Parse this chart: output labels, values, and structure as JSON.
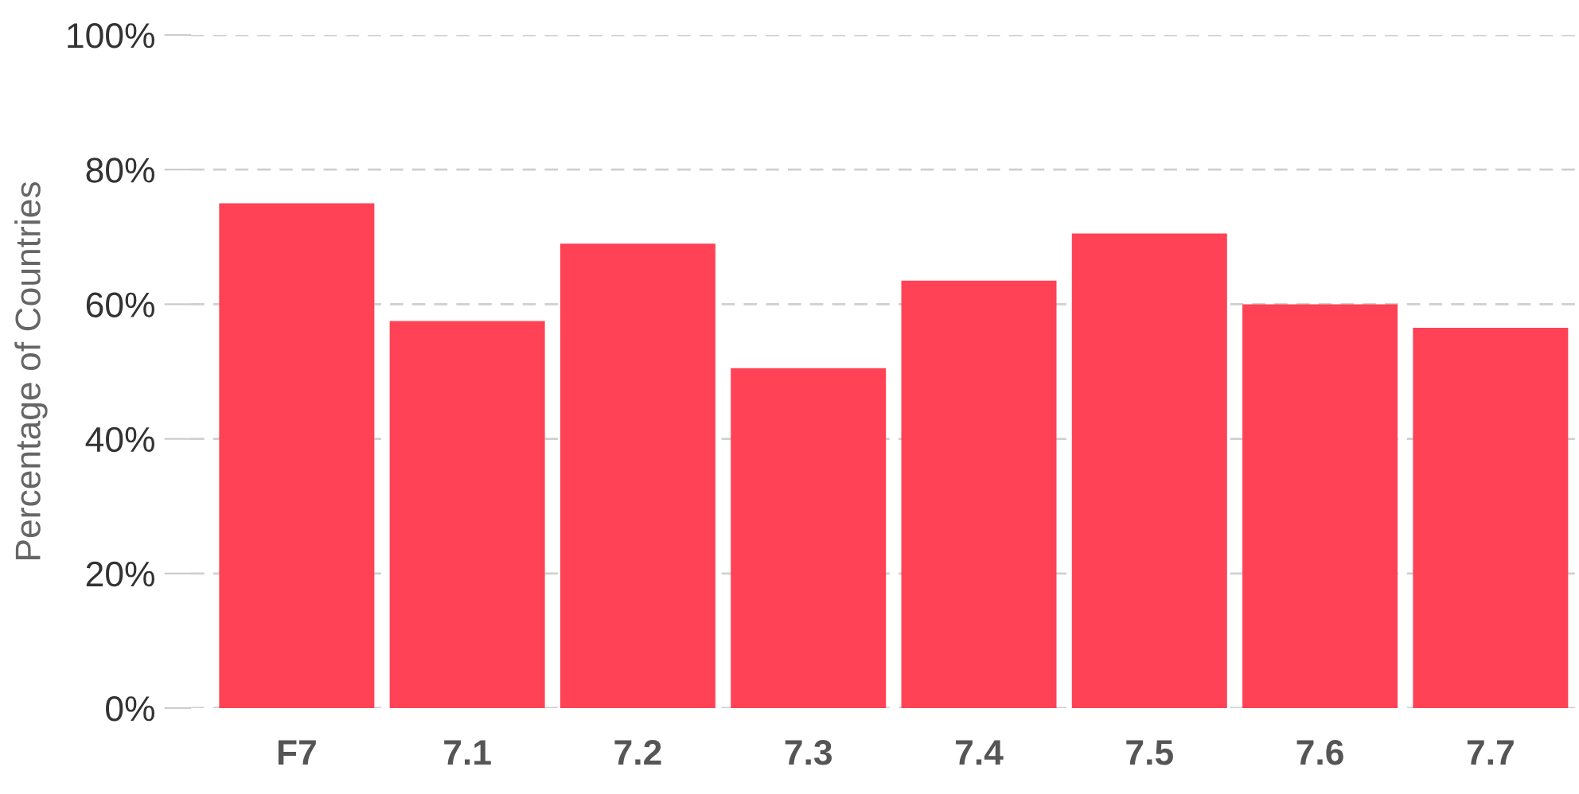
{
  "chart_data": {
    "type": "bar",
    "ylabel": "Percentage of Countries",
    "categories": [
      "F7",
      "7.1",
      "7.2",
      "7.3",
      "7.4",
      "7.5",
      "7.6",
      "7.7"
    ],
    "values": [
      75,
      57.5,
      69,
      50.5,
      63.5,
      70.5,
      60,
      56.5
    ],
    "color": "#ff4255",
    "ylim": [
      0,
      100
    ],
    "yticks": [
      {
        "value": 0,
        "label": "0%"
      },
      {
        "value": 20,
        "label": "20%"
      },
      {
        "value": 40,
        "label": "40%"
      },
      {
        "value": 60,
        "label": "60%"
      },
      {
        "value": 80,
        "label": "80%"
      },
      {
        "value": 100,
        "label": "100%"
      }
    ],
    "grid": "y",
    "legend": false
  }
}
